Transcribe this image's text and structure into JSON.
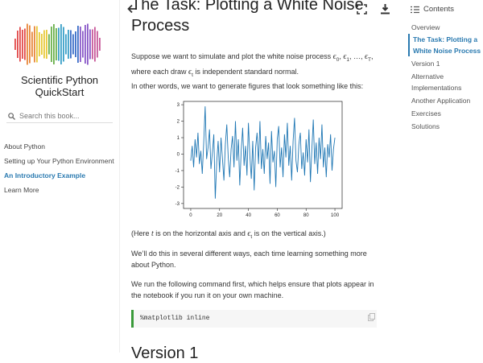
{
  "sidebar": {
    "site_title": "Scientific Python QuickStart",
    "search_placeholder": "Search this book...",
    "nav": [
      "About Python",
      "Setting up Your Python Environment",
      "An Introductory Example",
      "Learn More"
    ],
    "active_nav": 2
  },
  "toc": {
    "title": "Contents",
    "items": [
      "Overview",
      "The Task: Plotting a White Noise Process",
      "Version 1",
      "Alternative Implementations",
      "Another Application",
      "Exercises",
      "Solutions"
    ],
    "active": 1
  },
  "content": {
    "heading": "The Task: Plotting a White Noise Process",
    "paragraph_1": [
      "Suppose we want to simulate and plot the white noise process ",
      {
        "math": "ϵ",
        "sub": "0"
      },
      ", ",
      {
        "math": "ϵ",
        "sub": "1"
      },
      ", …, ",
      {
        "math": "ϵ",
        "sub": "T"
      },
      ", where each draw ",
      {
        "math": "ϵ",
        "sub": "t"
      },
      " is independent standard normal."
    ],
    "paragraph_2": [
      "In other words, we want to generate figures that look something like this:"
    ],
    "figure": {
      "type": "line",
      "color": "#1f77b4",
      "xlim": [
        -5,
        105
      ],
      "ylim": [
        -3.3,
        3.2
      ],
      "xticks": [
        0,
        20,
        40,
        60,
        80,
        100
      ],
      "yticks": [
        -3,
        -2,
        -1,
        0,
        1,
        2,
        3
      ],
      "values": [
        -0.4,
        0.5,
        -0.8,
        0.9,
        -0.2,
        1.3,
        -0.6,
        0.2,
        -1.2,
        0.7,
        2.9,
        -0.3,
        0.4,
        1.5,
        -0.9,
        0.1,
        1.2,
        -2.7,
        -0.5,
        0.8,
        -1.1,
        1.0,
        -0.3,
        -1.6,
        0.6,
        1.8,
        -0.2,
        -1.4,
        0.3,
        1.1,
        -0.8,
        2.0,
        -0.4,
        0.9,
        -1.9,
        0.2,
        1.6,
        -0.7,
        0.5,
        -1.3,
        1.9,
        -0.1,
        -1.5,
        0.8,
        -2.2,
        0.4,
        1.3,
        -0.6,
        2.0,
        -0.9,
        0.3,
        -1.2,
        1.1,
        -0.3,
        0.7,
        -1.8,
        1.4,
        -0.5,
        0.2,
        -2.0,
        0.9,
        1.7,
        -0.8,
        0.4,
        -1.4,
        1.2,
        -0.2,
        1.9,
        -0.7,
        0.5,
        -1.6,
        0.8,
        2.2,
        -0.4,
        -1.1,
        0.6,
        1.3,
        -0.9,
        0.1,
        -1.3,
        0.9,
        -0.5,
        1.5,
        -1.7,
        0.3,
        2.1,
        -0.6,
        0.7,
        -1.2,
        1.0,
        -0.3,
        1.8,
        -0.8,
        0.4,
        -1.4,
        0.6,
        -0.2,
        1.2,
        -1.0,
        0.3,
        1.0
      ]
    },
    "caption": [
      "(Here ",
      {
        "math": "t"
      },
      " is on the horizontal axis and ",
      {
        "math": "ϵ",
        "sub": "t"
      },
      " is on the vertical axis.)"
    ],
    "paragraph_3": [
      "We’ll do this in several different ways, each time learning something more about Python."
    ],
    "paragraph_4": [
      "We run the following command first, which helps ensure that plots appear in the notebook if you run it on your own machine."
    ],
    "code": "%matplotlib inline",
    "next_heading": "Version 1"
  }
}
